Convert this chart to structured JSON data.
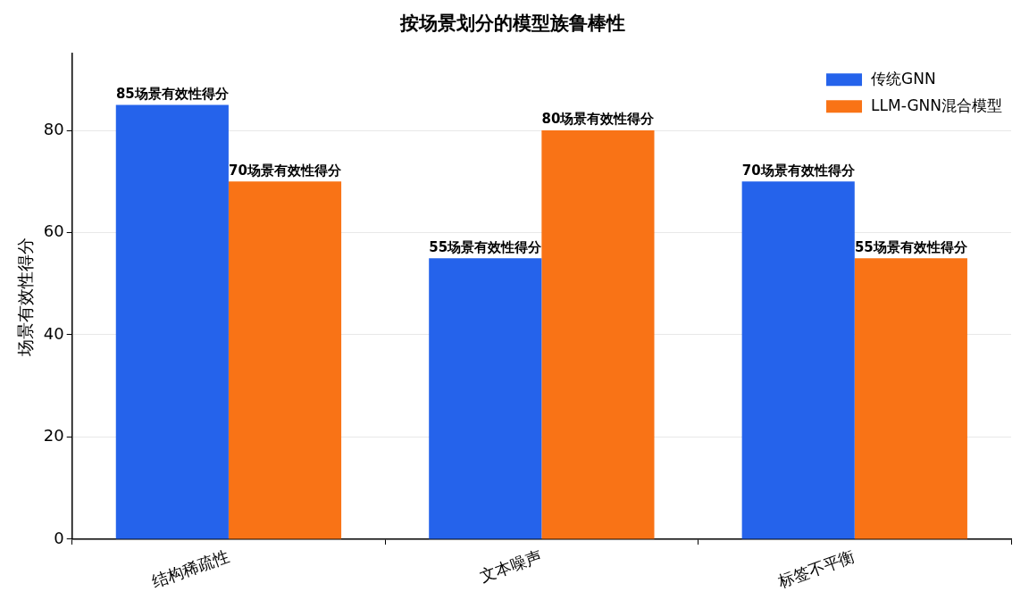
{
  "chart_data": {
    "type": "bar",
    "title": "按场景划分的模型族鲁棒性",
    "ylabel": "场景有效性得分",
    "categories": [
      "结构稀疏性",
      "文本噪声",
      "标签不平衡"
    ],
    "series": [
      {
        "name": "传统GNN",
        "color": "#2563eb",
        "values": [
          85,
          55,
          70
        ],
        "value_labels": [
          "85场景有效性得分",
          "55场景有效性得分",
          "70场景有效性得分"
        ]
      },
      {
        "name": "LLM-GNN混合模型",
        "color": "#f97316",
        "values": [
          70,
          80,
          55
        ],
        "value_labels": [
          "70场景有效性得分",
          "80场景有效性得分",
          "55场景有效性得分"
        ]
      }
    ],
    "ylim": [
      0,
      95
    ],
    "yticks": [
      0,
      20,
      40,
      60,
      80
    ],
    "grid": "y",
    "legend": "top right"
  }
}
